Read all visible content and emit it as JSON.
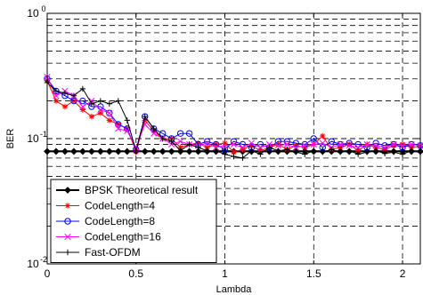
{
  "chart_data": {
    "type": "line",
    "xlabel": "Lambda",
    "ylabel": "BER",
    "xlim": [
      0,
      2.1
    ],
    "ylim": [
      0.01,
      1
    ],
    "yscale": "log",
    "grid": true,
    "x_ticks": [
      0,
      0.5,
      1,
      1.5,
      2
    ],
    "x_tick_labels": [
      "0",
      "0.5",
      "1",
      "1.5",
      "2"
    ],
    "y_ticks": [
      0.01,
      0.1,
      1
    ],
    "y_tick_labels": [
      {
        "base": "10",
        "exp": "-2"
      },
      {
        "base": "10",
        "exp": "-1"
      },
      {
        "base": "10",
        "exp": "0"
      }
    ],
    "legend_position": "bottom-left",
    "series": [
      {
        "name": "BPSK Theoretical result",
        "color": "#000000",
        "marker": "diamond",
        "line_width": 2,
        "x": [
          0,
          0.05,
          0.1,
          0.15,
          0.2,
          0.25,
          0.3,
          0.35,
          0.4,
          0.45,
          0.5,
          0.55,
          0.6,
          0.65,
          0.7,
          0.75,
          0.8,
          0.85,
          0.9,
          0.95,
          1.0,
          1.05,
          1.1,
          1.15,
          1.2,
          1.25,
          1.3,
          1.35,
          1.4,
          1.45,
          1.5,
          1.55,
          1.6,
          1.65,
          1.7,
          1.75,
          1.8,
          1.85,
          1.9,
          1.95,
          2.0,
          2.05,
          2.1
        ],
        "y": [
          0.079,
          0.079,
          0.079,
          0.079,
          0.079,
          0.079,
          0.079,
          0.079,
          0.079,
          0.079,
          0.079,
          0.079,
          0.079,
          0.079,
          0.079,
          0.079,
          0.079,
          0.079,
          0.079,
          0.079,
          0.079,
          0.079,
          0.079,
          0.079,
          0.079,
          0.079,
          0.079,
          0.079,
          0.079,
          0.079,
          0.079,
          0.079,
          0.079,
          0.079,
          0.079,
          0.079,
          0.079,
          0.079,
          0.079,
          0.079,
          0.079,
          0.079,
          0.079
        ]
      },
      {
        "name": "CodeLength=4",
        "color": "#ff0000",
        "marker": "star",
        "line_width": 1,
        "x": [
          0,
          0.05,
          0.1,
          0.15,
          0.2,
          0.25,
          0.3,
          0.35,
          0.4,
          0.45,
          0.5,
          0.55,
          0.6,
          0.65,
          0.7,
          0.75,
          0.8,
          0.85,
          0.9,
          0.95,
          1.0,
          1.05,
          1.1,
          1.15,
          1.2,
          1.25,
          1.3,
          1.35,
          1.4,
          1.45,
          1.5,
          1.55,
          1.6,
          1.65,
          1.7,
          1.75,
          1.8,
          1.85,
          1.9,
          1.95,
          2.0,
          2.05,
          2.1
        ],
        "y": [
          0.29,
          0.2,
          0.18,
          0.2,
          0.17,
          0.15,
          0.16,
          0.14,
          0.13,
          0.12,
          0.079,
          0.14,
          0.115,
          0.1,
          0.1,
          0.085,
          0.09,
          0.092,
          0.085,
          0.09,
          0.092,
          0.078,
          0.082,
          0.088,
          0.08,
          0.085,
          0.09,
          0.082,
          0.088,
          0.085,
          0.09,
          0.105,
          0.082,
          0.085,
          0.09,
          0.08,
          0.09,
          0.085,
          0.082,
          0.088,
          0.09,
          0.085,
          0.087
        ]
      },
      {
        "name": "CodeLength=8",
        "color": "#0000ff",
        "marker": "circle",
        "line_width": 1,
        "x": [
          0,
          0.05,
          0.1,
          0.15,
          0.2,
          0.25,
          0.3,
          0.35,
          0.4,
          0.45,
          0.5,
          0.55,
          0.6,
          0.65,
          0.7,
          0.75,
          0.8,
          0.85,
          0.9,
          0.95,
          1.0,
          1.05,
          1.1,
          1.15,
          1.2,
          1.25,
          1.3,
          1.35,
          1.4,
          1.45,
          1.5,
          1.55,
          1.6,
          1.65,
          1.7,
          1.75,
          1.8,
          1.85,
          1.9,
          1.95,
          2.0,
          2.05,
          2.1
        ],
        "y": [
          0.3,
          0.24,
          0.22,
          0.2,
          0.2,
          0.18,
          0.18,
          0.16,
          0.13,
          0.12,
          0.082,
          0.15,
          0.12,
          0.11,
          0.1,
          0.11,
          0.11,
          0.09,
          0.095,
          0.09,
          0.082,
          0.095,
          0.09,
          0.085,
          0.09,
          0.085,
          0.095,
          0.095,
          0.092,
          0.09,
          0.1,
          0.085,
          0.095,
          0.09,
          0.092,
          0.09,
          0.085,
          0.092,
          0.088,
          0.09,
          0.085,
          0.09,
          0.088
        ]
      },
      {
        "name": "CodeLength=16",
        "color": "#ff00ff",
        "marker": "x",
        "line_width": 1,
        "x": [
          0,
          0.05,
          0.1,
          0.15,
          0.2,
          0.25,
          0.3,
          0.35,
          0.4,
          0.45,
          0.5,
          0.55,
          0.6,
          0.65,
          0.7,
          0.75,
          0.8,
          0.85,
          0.9,
          0.95,
          1.0,
          1.05,
          1.1,
          1.15,
          1.2,
          1.25,
          1.3,
          1.35,
          1.4,
          1.45,
          1.5,
          1.55,
          1.6,
          1.65,
          1.7,
          1.75,
          1.8,
          1.85,
          1.9,
          1.95,
          2.0,
          2.05,
          2.1
        ],
        "y": [
          0.31,
          0.22,
          0.24,
          0.22,
          0.18,
          0.2,
          0.17,
          0.16,
          0.12,
          0.115,
          0.085,
          0.13,
          0.11,
          0.1,
          0.09,
          0.095,
          0.09,
          0.088,
          0.092,
          0.085,
          0.088,
          0.09,
          0.085,
          0.092,
          0.085,
          0.09,
          0.088,
          0.09,
          0.085,
          0.088,
          0.09,
          0.092,
          0.085,
          0.09,
          0.088,
          0.085,
          0.09,
          0.088,
          0.085,
          0.09,
          0.088,
          0.09,
          0.088
        ]
      },
      {
        "name": "Fast-OFDM",
        "color": "#000000",
        "marker": "plus",
        "line_width": 1,
        "x": [
          0,
          0.05,
          0.1,
          0.15,
          0.2,
          0.25,
          0.3,
          0.35,
          0.4,
          0.45,
          0.5,
          0.55,
          0.6,
          0.65,
          0.7,
          0.75,
          0.8,
          0.85,
          0.9,
          0.95,
          1.0,
          1.05,
          1.1,
          1.15,
          1.2,
          1.25,
          1.3,
          1.35,
          1.4,
          1.45,
          1.5,
          1.55,
          1.6,
          1.65,
          1.7,
          1.75,
          1.8,
          1.85,
          1.9,
          1.95,
          2.0,
          2.05,
          2.1
        ],
        "y": [
          0.28,
          0.24,
          0.23,
          0.22,
          0.25,
          0.19,
          0.2,
          0.19,
          0.2,
          0.14,
          0.08,
          0.15,
          0.12,
          0.1,
          0.095,
          0.08,
          0.09,
          0.085,
          0.08,
          0.08,
          0.075,
          0.072,
          0.07,
          0.08,
          0.075,
          0.085,
          0.08,
          0.082,
          0.078,
          0.075,
          0.08,
          0.078,
          0.082,
          0.078,
          0.08,
          0.075,
          0.078,
          0.08,
          0.076,
          0.078,
          0.075,
          0.08,
          0.078
        ]
      }
    ]
  }
}
